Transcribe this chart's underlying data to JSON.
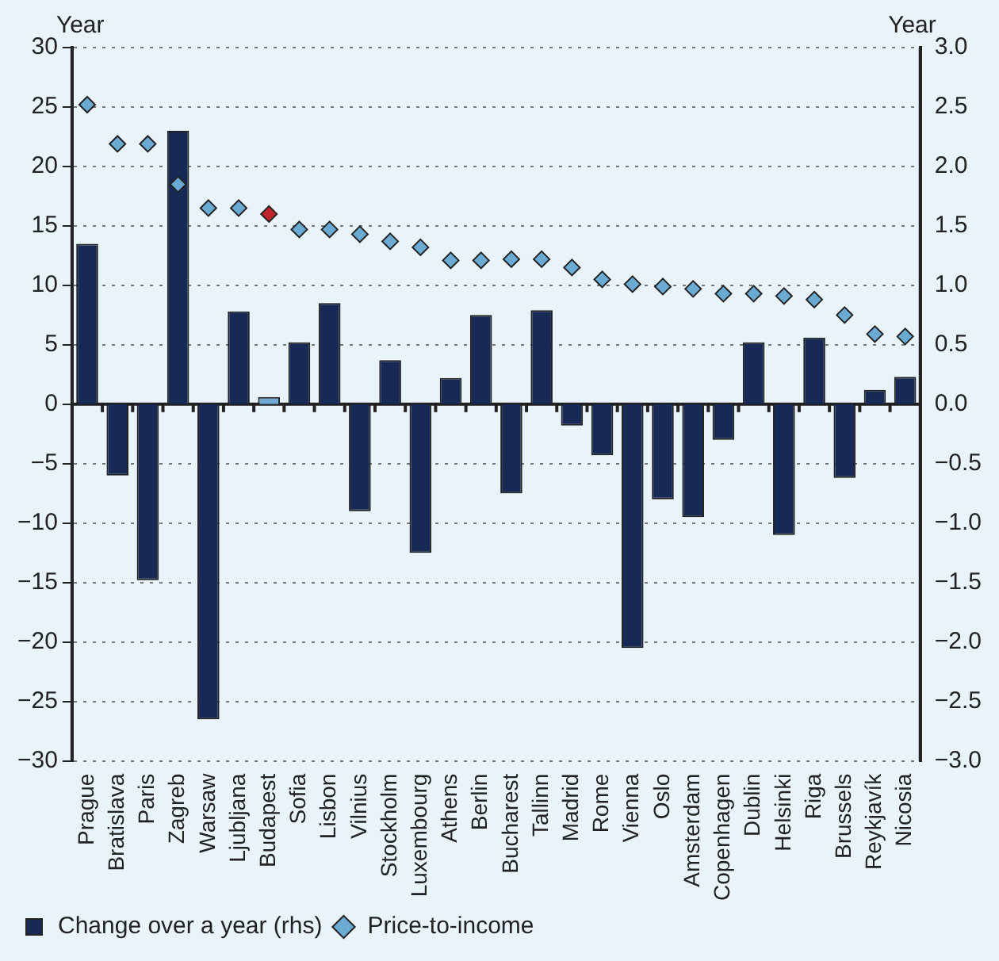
{
  "chart_data": {
    "type": "bar",
    "ylabel": "Year",
    "y2label": "Year",
    "categories": [
      "Prague",
      "Bratislava",
      "Paris",
      "Zagreb",
      "Warsaw",
      "Ljubljana",
      "Budapest",
      "Sofia",
      "Lisbon",
      "Vilnius",
      "Stockholm",
      "Luxembourg",
      "Athens",
      "Berlin",
      "Bucharest",
      "Tallinn",
      "Madrid",
      "Rome",
      "Vienna",
      "Oslo",
      "Amsterdam",
      "Copenhagen",
      "Dublin",
      "Helsinki",
      "Riga",
      "Brussels",
      "Reykjavík",
      "Nicosia"
    ],
    "series": [
      {
        "name": "Change over a year (rhs)",
        "axis": "y2",
        "color": "#172a55",
        "colors": [
          "#172a55",
          "#172a55",
          "#172a55",
          "#172a55",
          "#172a55",
          "#172a55",
          "#6fa8d0",
          "#172a55",
          "#172a55",
          "#172a55",
          "#172a55",
          "#172a55",
          "#172a55",
          "#172a55",
          "#172a55",
          "#172a55",
          "#172a55",
          "#172a55",
          "#172a55",
          "#172a55",
          "#172a55",
          "#172a55",
          "#172a55",
          "#172a55",
          "#172a55",
          "#172a55",
          "#172a55",
          "#172a55"
        ],
        "values": [
          1.35,
          -0.6,
          -1.48,
          2.3,
          -2.65,
          0.78,
          0.06,
          0.52,
          0.85,
          -0.9,
          0.37,
          -1.25,
          0.22,
          0.75,
          -0.75,
          0.79,
          -0.18,
          -0.43,
          -2.05,
          -0.8,
          -0.95,
          -0.3,
          0.52,
          -1.1,
          0.56,
          -0.62,
          0.12,
          0.23
        ]
      },
      {
        "name": "Price-to-income",
        "type": "scatter",
        "axis": "y",
        "marker": "diamond",
        "color": "#6aaad3",
        "colors": [
          "#6aaad3",
          "#6aaad3",
          "#6aaad3",
          "#6aaad3",
          "#6aaad3",
          "#6aaad3",
          "#c0242b",
          "#6aaad3",
          "#6aaad3",
          "#6aaad3",
          "#6aaad3",
          "#6aaad3",
          "#6aaad3",
          "#6aaad3",
          "#6aaad3",
          "#6aaad3",
          "#6aaad3",
          "#6aaad3",
          "#6aaad3",
          "#6aaad3",
          "#6aaad3",
          "#6aaad3",
          "#6aaad3",
          "#6aaad3",
          "#6aaad3",
          "#6aaad3",
          "#6aaad3",
          "#6aaad3"
        ],
        "values": [
          25.2,
          21.9,
          21.9,
          18.5,
          16.5,
          16.5,
          16.0,
          14.7,
          14.7,
          14.3,
          13.7,
          13.2,
          12.1,
          12.1,
          12.2,
          12.2,
          11.5,
          10.5,
          10.1,
          9.9,
          9.7,
          9.3,
          9.3,
          9.1,
          8.8,
          7.5,
          5.9,
          5.7
        ]
      }
    ],
    "ylim": [
      -30,
      30
    ],
    "yticks": [
      {
        "value": -30,
        "label": "−30"
      },
      {
        "value": -25,
        "label": "−25"
      },
      {
        "value": -20,
        "label": "−20"
      },
      {
        "value": -15,
        "label": "−15"
      },
      {
        "value": -10,
        "label": "−10"
      },
      {
        "value": -5,
        "label": "−5"
      },
      0,
      5,
      10,
      15,
      20,
      25,
      30
    ],
    "y2lim": [
      -3,
      3
    ],
    "y2ticks": [
      {
        "value": -3,
        "label": "−3.0"
      },
      {
        "value": -2.5,
        "label": "−2.5"
      },
      {
        "value": -2,
        "label": "−2.0"
      },
      {
        "value": -1.5,
        "label": "−1.5"
      },
      {
        "value": -1,
        "label": "−1.0"
      },
      {
        "value": -0.5,
        "label": "−0.5"
      },
      {
        "value": 0,
        "label": "0.0"
      },
      0.5,
      {
        "value": 1,
        "label": "1.0"
      },
      1.5,
      {
        "value": 2,
        "label": "2.0"
      },
      2.5,
      {
        "value": 3,
        "label": "3.0"
      }
    ],
    "grid": "y",
    "legend": "bottom left"
  }
}
